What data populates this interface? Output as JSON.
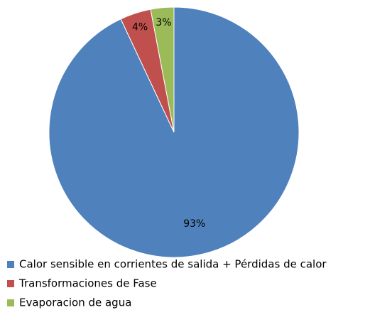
{
  "chart_data": {
    "type": "pie",
    "categories": [
      "Calor sensible en corrientes de salida + Pérdidas de calor",
      "Transformaciones de Fase",
      "Evaporacion de agua"
    ],
    "values": [
      93,
      4,
      3
    ],
    "value_labels": [
      "93%",
      "4%",
      "3%"
    ],
    "colors": [
      "#4f81bd",
      "#c0504d",
      "#9bbb59"
    ],
    "legend": "bottom-left"
  }
}
